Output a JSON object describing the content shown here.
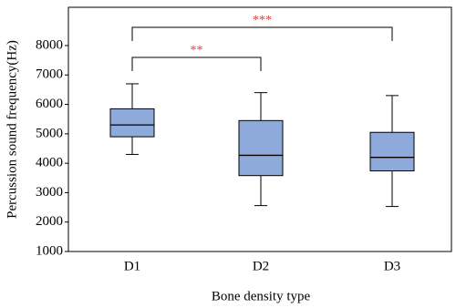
{
  "chart_data": {
    "type": "box",
    "x_label": "Bone density type",
    "y_label": "Percussion sound frequency(Hz)",
    "categories": [
      "D1",
      "D2",
      "D3"
    ],
    "boxes": [
      {
        "min": 4300,
        "q1": 4900,
        "median": 5300,
        "q3": 5850,
        "max": 6700
      },
      {
        "min": 2560,
        "q1": 3580,
        "median": 4270,
        "q3": 5450,
        "max": 6400
      },
      {
        "min": 2530,
        "q1": 3740,
        "median": 4200,
        "q3": 5050,
        "max": 6300
      }
    ],
    "color": "#8eaadb",
    "ylim": [
      1000,
      9300
    ],
    "yticks": [
      1000,
      2000,
      3000,
      4000,
      5000,
      6000,
      7000,
      8000
    ],
    "annotations": [
      {
        "text": "**",
        "color": "#e03c3c"
      },
      {
        "text": "***",
        "color": "#e03c3c"
      }
    ]
  }
}
